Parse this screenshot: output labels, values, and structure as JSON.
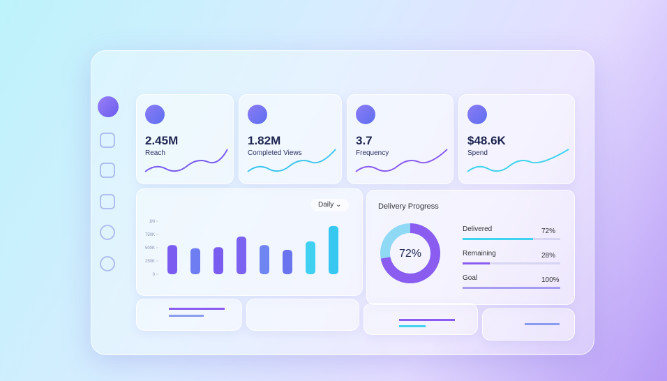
{
  "kpis": [
    {
      "value": "2.45M",
      "label": "Reach"
    },
    {
      "value": "1.82M",
      "label": "Completed Views"
    },
    {
      "value": "3.7",
      "label": "Frequency"
    },
    {
      "value": "$48.6K",
      "label": "Spend"
    }
  ],
  "bar_chart": {
    "type": "bar",
    "period": "Daily",
    "ylim": [
      0,
      1000000
    ],
    "yticks": [
      {
        "value": 0,
        "label": "0"
      },
      {
        "value": 250000,
        "label": "250K"
      },
      {
        "value": 500000,
        "label": "500K"
      },
      {
        "value": 750000,
        "label": "750K"
      },
      {
        "value": 1000000,
        "label": "1M"
      }
    ],
    "values": [
      550000,
      490000,
      510000,
      710000,
      550000,
      460000,
      620000,
      910000
    ],
    "colors": [
      "#7b5cf0",
      "#6f7df2",
      "#7a5cf0",
      "#7b62f0",
      "#6f86f2",
      "#6a74ee",
      "#3fd0f2",
      "#36c8f0"
    ]
  },
  "delivery": {
    "title": "Delivery Progress",
    "donut": {
      "value": 72,
      "label": "72%"
    },
    "items": [
      {
        "name": "Delivered",
        "value": 72,
        "value_label": "72%",
        "color": "#3fd3ef"
      },
      {
        "name": "Remaining",
        "value": 28,
        "value_label": "28%",
        "color": "#8a5cf0"
      },
      {
        "name": "Goal",
        "value": 100,
        "value_label": "100%",
        "color": "#a89cf0"
      }
    ]
  }
}
